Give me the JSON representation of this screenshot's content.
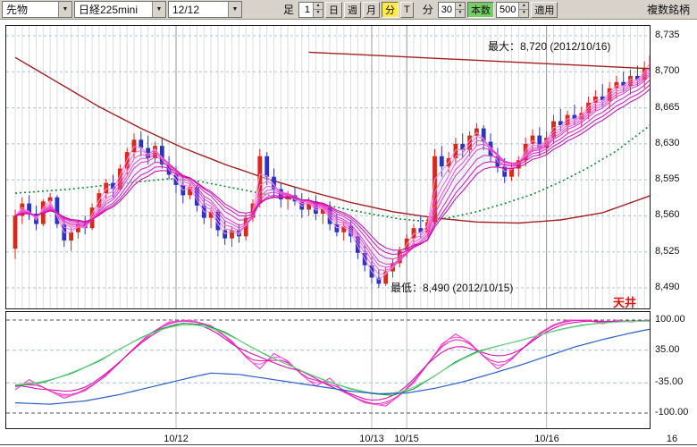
{
  "toolbar": {
    "category": "先物",
    "symbol": "日経225mini",
    "contract": "12/12",
    "bar_label": "足",
    "interval_value": "1",
    "period_buttons": [
      "日",
      "週",
      "月",
      "分",
      "T"
    ],
    "active_period": "分",
    "minute_label": "分",
    "minute_value": "30",
    "bars_label": "本数",
    "bars_value": "500",
    "apply_label": "適用",
    "multi_symbol_label": "複数銘柄"
  },
  "annotations": {
    "max": "最大：8,720 (2012/10/16)",
    "min": "最低：8,490 (2012/10/15)",
    "ceiling": "天井"
  },
  "colors": {
    "up": "#d8281a",
    "down": "#2a34c0",
    "ma_long": "#a02020",
    "trendline": "#a02020",
    "ma_green": "#0c8a30",
    "ribbon": [
      "#ff8ae4",
      "#fb74dd",
      "#f660d6",
      "#f04ccf",
      "#e939c6",
      "#e026bc",
      "#d514b1",
      "#c905a6"
    ],
    "osc_magenta": [
      "#ee3dcc",
      "#f45fd6",
      "#e92bbd",
      "#d214a8"
    ],
    "osc_green_1": "#12a344",
    "osc_green_2": "#7fd48f",
    "osc_blue": "#2a5fc4"
  },
  "chart_data": {
    "type": "candlestick",
    "symbol": "日経225mini 12/12 30分足",
    "price_axis": {
      "min": 8490,
      "max": 8735,
      "tick": 35,
      "levels": [
        8735,
        8700,
        8665,
        8630,
        8595,
        8560,
        8525,
        8490
      ],
      "labels": [
        "8,735",
        "8,700",
        "8,665",
        "8,630",
        "8,595",
        "8,560",
        "8,525",
        "8,490"
      ]
    },
    "dates": [
      {
        "label": "10/12",
        "index": 23
      },
      {
        "label": "10/13",
        "index": 51
      },
      {
        "label": "10/15",
        "index": 56
      },
      {
        "label": "10/16",
        "index": 76
      },
      {
        "label": "16",
        "index": 94
      }
    ],
    "max_point": {
      "price": 8720,
      "date": "2012/10/16"
    },
    "min_point": {
      "price": 8490,
      "date": "2012/10/15"
    },
    "candles": [
      [
        8528,
        8566,
        8518,
        8560
      ],
      [
        8560,
        8578,
        8552,
        8572
      ],
      [
        8572,
        8580,
        8556,
        8562
      ],
      [
        8562,
        8570,
        8546,
        8552
      ],
      [
        8552,
        8576,
        8550,
        8574
      ],
      [
        8574,
        8582,
        8566,
        8578
      ],
      [
        8578,
        8580,
        8548,
        8552
      ],
      [
        8552,
        8560,
        8530,
        8536
      ],
      [
        8536,
        8548,
        8526,
        8544
      ],
      [
        8544,
        8556,
        8538,
        8552
      ],
      [
        8552,
        8560,
        8542,
        8548
      ],
      [
        8548,
        8572,
        8546,
        8568
      ],
      [
        8568,
        8586,
        8562,
        8582
      ],
      [
        8582,
        8596,
        8576,
        8592
      ],
      [
        8592,
        8600,
        8578,
        8586
      ],
      [
        8586,
        8610,
        8584,
        8606
      ],
      [
        8606,
        8626,
        8600,
        8622
      ],
      [
        8622,
        8640,
        8616,
        8634
      ],
      [
        8634,
        8642,
        8618,
        8626
      ],
      [
        8626,
        8638,
        8610,
        8616
      ],
      [
        8616,
        8632,
        8612,
        8628
      ],
      [
        8628,
        8636,
        8606,
        8610
      ],
      [
        8610,
        8618,
        8596,
        8600
      ],
      [
        8600,
        8608,
        8582,
        8590
      ],
      [
        8590,
        8598,
        8572,
        8580
      ],
      [
        8580,
        8592,
        8576,
        8588
      ],
      [
        8588,
        8590,
        8564,
        8570
      ],
      [
        8570,
        8578,
        8552,
        8558
      ],
      [
        8558,
        8568,
        8548,
        8564
      ],
      [
        8564,
        8566,
        8540,
        8546
      ],
      [
        8546,
        8556,
        8532,
        8538
      ],
      [
        8538,
        8550,
        8530,
        8546
      ],
      [
        8546,
        8552,
        8534,
        8540
      ],
      [
        8540,
        8562,
        8536,
        8558
      ],
      [
        8558,
        8576,
        8554,
        8572
      ],
      [
        8572,
        8625,
        8568,
        8618
      ],
      [
        8618,
        8622,
        8590,
        8598
      ],
      [
        8598,
        8606,
        8578,
        8586
      ],
      [
        8586,
        8592,
        8568,
        8576
      ],
      [
        8576,
        8584,
        8566,
        8580
      ],
      [
        8580,
        8588,
        8570,
        8574
      ],
      [
        8574,
        8582,
        8558,
        8566
      ],
      [
        8566,
        8578,
        8560,
        8574
      ],
      [
        8574,
        8580,
        8556,
        8562
      ],
      [
        8562,
        8572,
        8552,
        8568
      ],
      [
        8568,
        8574,
        8546,
        8552
      ],
      [
        8552,
        8562,
        8540,
        8544
      ],
      [
        8544,
        8554,
        8536,
        8550
      ],
      [
        8550,
        8556,
        8534,
        8540
      ],
      [
        8540,
        8544,
        8518,
        8524
      ],
      [
        8524,
        8532,
        8506,
        8512
      ],
      [
        8512,
        8520,
        8494,
        8500
      ],
      [
        8500,
        8508,
        8490,
        8494
      ],
      [
        8494,
        8510,
        8492,
        8506
      ],
      [
        8506,
        8518,
        8500,
        8514
      ],
      [
        8514,
        8530,
        8510,
        8526
      ],
      [
        8526,
        8542,
        8520,
        8538
      ],
      [
        8538,
        8552,
        8532,
        8548
      ],
      [
        8548,
        8560,
        8538,
        8544
      ],
      [
        8544,
        8558,
        8540,
        8554
      ],
      [
        8554,
        8625,
        8550,
        8618
      ],
      [
        8618,
        8628,
        8598,
        8608
      ],
      [
        8608,
        8622,
        8602,
        8616
      ],
      [
        8616,
        8636,
        8610,
        8630
      ],
      [
        8630,
        8640,
        8616,
        8624
      ],
      [
        8624,
        8642,
        8618,
        8638
      ],
      [
        8638,
        8650,
        8628,
        8645
      ],
      [
        8645,
        8648,
        8624,
        8632
      ],
      [
        8632,
        8640,
        8612,
        8618
      ],
      [
        8618,
        8626,
        8602,
        8608
      ],
      [
        8608,
        8616,
        8592,
        8598
      ],
      [
        8598,
        8612,
        8594,
        8606
      ],
      [
        8606,
        8618,
        8598,
        8614
      ],
      [
        8614,
        8636,
        8608,
        8630
      ],
      [
        8630,
        8644,
        8622,
        8638
      ],
      [
        8638,
        8646,
        8618,
        8626
      ],
      [
        8626,
        8642,
        8620,
        8636
      ],
      [
        8636,
        8658,
        8630,
        8652
      ],
      [
        8652,
        8664,
        8642,
        8648
      ],
      [
        8648,
        8662,
        8640,
        8658
      ],
      [
        8658,
        8668,
        8648,
        8654
      ],
      [
        8654,
        8666,
        8646,
        8660
      ],
      [
        8660,
        8676,
        8654,
        8670
      ],
      [
        8670,
        8682,
        8662,
        8676
      ],
      [
        8676,
        8688,
        8666,
        8672
      ],
      [
        8672,
        8690,
        8664,
        8684
      ],
      [
        8684,
        8696,
        8674,
        8690
      ],
      [
        8690,
        8700,
        8680,
        8686
      ],
      [
        8686,
        8702,
        8678,
        8696
      ],
      [
        8696,
        8706,
        8686,
        8692
      ],
      [
        8692,
        8710,
        8684,
        8704
      ],
      [
        8704,
        8720,
        8694,
        8716
      ]
    ],
    "ma_ribbon_periods": [
      2,
      3,
      4,
      5,
      6,
      8,
      10,
      12
    ],
    "ma_long": [
      [
        0,
        8714
      ],
      [
        6,
        8690
      ],
      [
        12,
        8666
      ],
      [
        18,
        8645
      ],
      [
        24,
        8626
      ],
      [
        30,
        8610
      ],
      [
        36,
        8596
      ],
      [
        42,
        8584
      ],
      [
        48,
        8573
      ],
      [
        54,
        8564
      ],
      [
        60,
        8558
      ],
      [
        66,
        8554
      ],
      [
        72,
        8553
      ],
      [
        78,
        8556
      ],
      [
        84,
        8563
      ],
      [
        91,
        8580
      ]
    ],
    "ma_green": [
      [
        0,
        8582
      ],
      [
        8,
        8586
      ],
      [
        16,
        8592
      ],
      [
        22,
        8596
      ],
      [
        26,
        8594
      ],
      [
        32,
        8586
      ],
      [
        38,
        8578
      ],
      [
        44,
        8571
      ],
      [
        50,
        8563
      ],
      [
        55,
        8557
      ],
      [
        58,
        8555
      ],
      [
        62,
        8558
      ],
      [
        66,
        8564
      ],
      [
        70,
        8572
      ],
      [
        74,
        8581
      ],
      [
        78,
        8593
      ],
      [
        82,
        8607
      ],
      [
        86,
        8623
      ],
      [
        91,
        8649
      ]
    ],
    "trendline": {
      "i1": 42,
      "p1": 8719,
      "p2": 8703
    },
    "oscillator": {
      "range": [
        -100,
        100
      ],
      "guides": [
        100,
        35,
        -35,
        -100
      ],
      "labels": [
        "100.00",
        "35.00",
        "-35.00",
        "-100.00"
      ],
      "magenta": [
        [
          0,
          -50
        ],
        [
          2,
          -28
        ],
        [
          4,
          -45
        ],
        [
          7,
          -68
        ],
        [
          10,
          -52
        ],
        [
          13,
          -20
        ],
        [
          16,
          25
        ],
        [
          19,
          68
        ],
        [
          22,
          96
        ],
        [
          25,
          100
        ],
        [
          28,
          88
        ],
        [
          31,
          55
        ],
        [
          33,
          20
        ],
        [
          35,
          -5
        ],
        [
          37,
          28
        ],
        [
          39,
          12
        ],
        [
          41,
          -18
        ],
        [
          43,
          -42
        ],
        [
          45,
          -25
        ],
        [
          47,
          -55
        ],
        [
          50,
          -78
        ],
        [
          53,
          -85
        ],
        [
          55,
          -62
        ],
        [
          57,
          -35
        ],
        [
          59,
          5
        ],
        [
          61,
          48
        ],
        [
          63,
          70
        ],
        [
          65,
          52
        ],
        [
          67,
          22
        ],
        [
          69,
          -5
        ],
        [
          71,
          15
        ],
        [
          73,
          45
        ],
        [
          75,
          72
        ],
        [
          77,
          90
        ],
        [
          79,
          100
        ],
        [
          82,
          100
        ],
        [
          84,
          92
        ],
        [
          86,
          100
        ],
        [
          88,
          96
        ],
        [
          91,
          100
        ]
      ],
      "green": [
        [
          0,
          -42
        ],
        [
          4,
          -34
        ],
        [
          8,
          -15
        ],
        [
          12,
          12
        ],
        [
          15,
          38
        ],
        [
          18,
          62
        ],
        [
          21,
          82
        ],
        [
          24,
          93
        ],
        [
          27,
          90
        ],
        [
          30,
          74
        ],
        [
          33,
          48
        ],
        [
          36,
          24
        ],
        [
          39,
          4
        ],
        [
          42,
          -16
        ],
        [
          45,
          -34
        ],
        [
          48,
          -48
        ],
        [
          51,
          -58
        ],
        [
          54,
          -62
        ],
        [
          57,
          -48
        ],
        [
          60,
          -20
        ],
        [
          63,
          10
        ],
        [
          66,
          32
        ],
        [
          69,
          44
        ],
        [
          72,
          55
        ],
        [
          75,
          68
        ],
        [
          78,
          80
        ],
        [
          81,
          89
        ],
        [
          84,
          94
        ],
        [
          87,
          97
        ],
        [
          91,
          98
        ]
      ],
      "blue": [
        [
          0,
          -78
        ],
        [
          5,
          -81
        ],
        [
          10,
          -74
        ],
        [
          15,
          -60
        ],
        [
          20,
          -42
        ],
        [
          25,
          -24
        ],
        [
          28,
          -14
        ],
        [
          32,
          -17
        ],
        [
          36,
          -26
        ],
        [
          40,
          -35
        ],
        [
          44,
          -44
        ],
        [
          48,
          -53
        ],
        [
          52,
          -59
        ],
        [
          56,
          -57
        ],
        [
          60,
          -47
        ],
        [
          64,
          -33
        ],
        [
          68,
          -16
        ],
        [
          72,
          2
        ],
        [
          76,
          22
        ],
        [
          80,
          42
        ],
        [
          84,
          58
        ],
        [
          88,
          72
        ],
        [
          91,
          81
        ]
      ]
    }
  }
}
